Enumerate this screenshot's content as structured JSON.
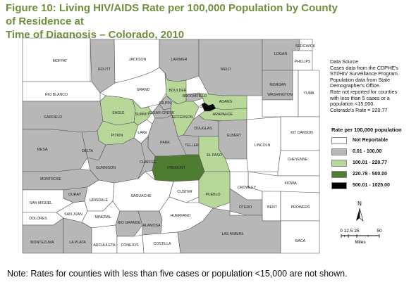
{
  "title_line1": "Figure 10: Living HIV/AIDS Rate per 100,000 Population by County of Residence at",
  "title_line2": "Time of Diagnosis – Colorado, 2010",
  "colors": {
    "not_reportable": "#ffffff",
    "tier1": "#b7b7b7",
    "tier2": "#b8d89a",
    "tier3": "#4e7d31",
    "tier4": "#000000",
    "title": "#6f8f3c"
  },
  "counties": [
    {
      "name": "SEDGWICK",
      "cat": "not_reportable"
    },
    {
      "name": "MOFFAT",
      "cat": "not_reportable"
    },
    {
      "name": "ROUTT",
      "cat": "tier1"
    },
    {
      "name": "JACKSON",
      "cat": "not_reportable"
    },
    {
      "name": "LARIMER",
      "cat": "tier1"
    },
    {
      "name": "WELD",
      "cat": "tier1"
    },
    {
      "name": "LOGAN",
      "cat": "tier1"
    },
    {
      "name": "PHILLIPS",
      "cat": "not_reportable"
    },
    {
      "name": "RIO BLANCO",
      "cat": "not_reportable"
    },
    {
      "name": "GRAND",
      "cat": "not_reportable"
    },
    {
      "name": "BOULDER",
      "cat": "tier2"
    },
    {
      "name": "BROOMFIELD",
      "cat": "tier1"
    },
    {
      "name": "MORGAN",
      "cat": "tier1"
    },
    {
      "name": "WASHINGTON",
      "cat": "not_reportable"
    },
    {
      "name": "YUMA",
      "cat": "not_reportable"
    },
    {
      "name": "ADAMS",
      "cat": "tier2"
    },
    {
      "name": "DENVER",
      "cat": "tier4"
    },
    {
      "name": "GARFIELD",
      "cat": "tier1"
    },
    {
      "name": "EAGLE",
      "cat": "tier2"
    },
    {
      "name": "SUMMIT",
      "cat": "tier2"
    },
    {
      "name": "GILPIN",
      "cat": "tier1"
    },
    {
      "name": "CLEAR CREEK",
      "cat": "tier1"
    },
    {
      "name": "JEFFERSON",
      "cat": "tier2"
    },
    {
      "name": "ARAPAHOE",
      "cat": "tier2"
    },
    {
      "name": "DOUGLAS",
      "cat": "tier1"
    },
    {
      "name": "ELBERT",
      "cat": "tier1"
    },
    {
      "name": "KIT CARSON",
      "cat": "not_reportable"
    },
    {
      "name": "MESA",
      "cat": "tier1"
    },
    {
      "name": "PITKIN",
      "cat": "tier2"
    },
    {
      "name": "LAKE",
      "cat": "not_reportable"
    },
    {
      "name": "DELTA",
      "cat": "tier1"
    },
    {
      "name": "PARK",
      "cat": "tier1"
    },
    {
      "name": "LINCOLN",
      "cat": "not_reportable"
    },
    {
      "name": "CHEYENNE",
      "cat": "not_reportable"
    },
    {
      "name": "GUNNISON",
      "cat": "tier1"
    },
    {
      "name": "CHAFFEE",
      "cat": "tier1"
    },
    {
      "name": "TELLER",
      "cat": "tier1"
    },
    {
      "name": "EL PASO",
      "cat": "tier2"
    },
    {
      "name": "MONTROSE",
      "cat": "tier1"
    },
    {
      "name": "FREMONT",
      "cat": "tier3"
    },
    {
      "name": "KIOWA",
      "cat": "not_reportable"
    },
    {
      "name": "OURAY",
      "cat": "tier1"
    },
    {
      "name": "CROWLEY",
      "cat": "not_reportable"
    },
    {
      "name": "SAN MIGUEL",
      "cat": "not_reportable"
    },
    {
      "name": "HINSDALE",
      "cat": "not_reportable"
    },
    {
      "name": "SAGUACHE",
      "cat": "not_reportable"
    },
    {
      "name": "CUSTER",
      "cat": "not_reportable"
    },
    {
      "name": "PUEBLO",
      "cat": "tier2"
    },
    {
      "name": "OTERO",
      "cat": "tier1"
    },
    {
      "name": "BENT",
      "cat": "not_reportable"
    },
    {
      "name": "PROWERS",
      "cat": "not_reportable"
    },
    {
      "name": "DOLORES",
      "cat": "not_reportable"
    },
    {
      "name": "SAN JUAN",
      "cat": "not_reportable"
    },
    {
      "name": "MINERAL",
      "cat": "not_reportable"
    },
    {
      "name": "RIO GRANDE",
      "cat": "tier1"
    },
    {
      "name": "ALAMOSA",
      "cat": "tier1"
    },
    {
      "name": "HUERFANO",
      "cat": "not_reportable"
    },
    {
      "name": "MONTEZUMA",
      "cat": "tier1"
    },
    {
      "name": "LA PLATA",
      "cat": "tier1"
    },
    {
      "name": "ARCHULETA",
      "cat": "not_reportable"
    },
    {
      "name": "CONEJOS",
      "cat": "not_reportable"
    },
    {
      "name": "COSTILLA",
      "cat": "not_reportable"
    },
    {
      "name": "LAS ANIMAS",
      "cat": "tier1"
    },
    {
      "name": "BACA",
      "cat": "not_reportable"
    }
  ],
  "source_lines": [
    "Data Source",
    "Cases data from the CDPHE's",
    "STI/HIV Surveillance Program.",
    "Population data from State",
    "Demographer's Office.",
    "Rate not reported for counties",
    "with less than 5 cases or a",
    "population <15,000.",
    "Colorado's Rate = 220.77"
  ],
  "legend": {
    "title": "Rate per 100,000 population",
    "items": [
      {
        "label": "Not Reportable",
        "color": "#ffffff"
      },
      {
        "label": "0.01 - 100.00",
        "color": "#b7b7b7"
      },
      {
        "label": "100.01 - 220.77",
        "color": "#b8d89a"
      },
      {
        "label": "220.78 - 500.00",
        "color": "#4e7d31"
      },
      {
        "label": "500.01 - 1025.00",
        "color": "#000000"
      }
    ]
  },
  "scale": {
    "north": "N",
    "ticks": [
      "0",
      "12.5",
      "25",
      "",
      "50"
    ],
    "unit": "Miles"
  },
  "note": "Note: Rates for counties with less than five cases or population <15,000 are not shown."
}
